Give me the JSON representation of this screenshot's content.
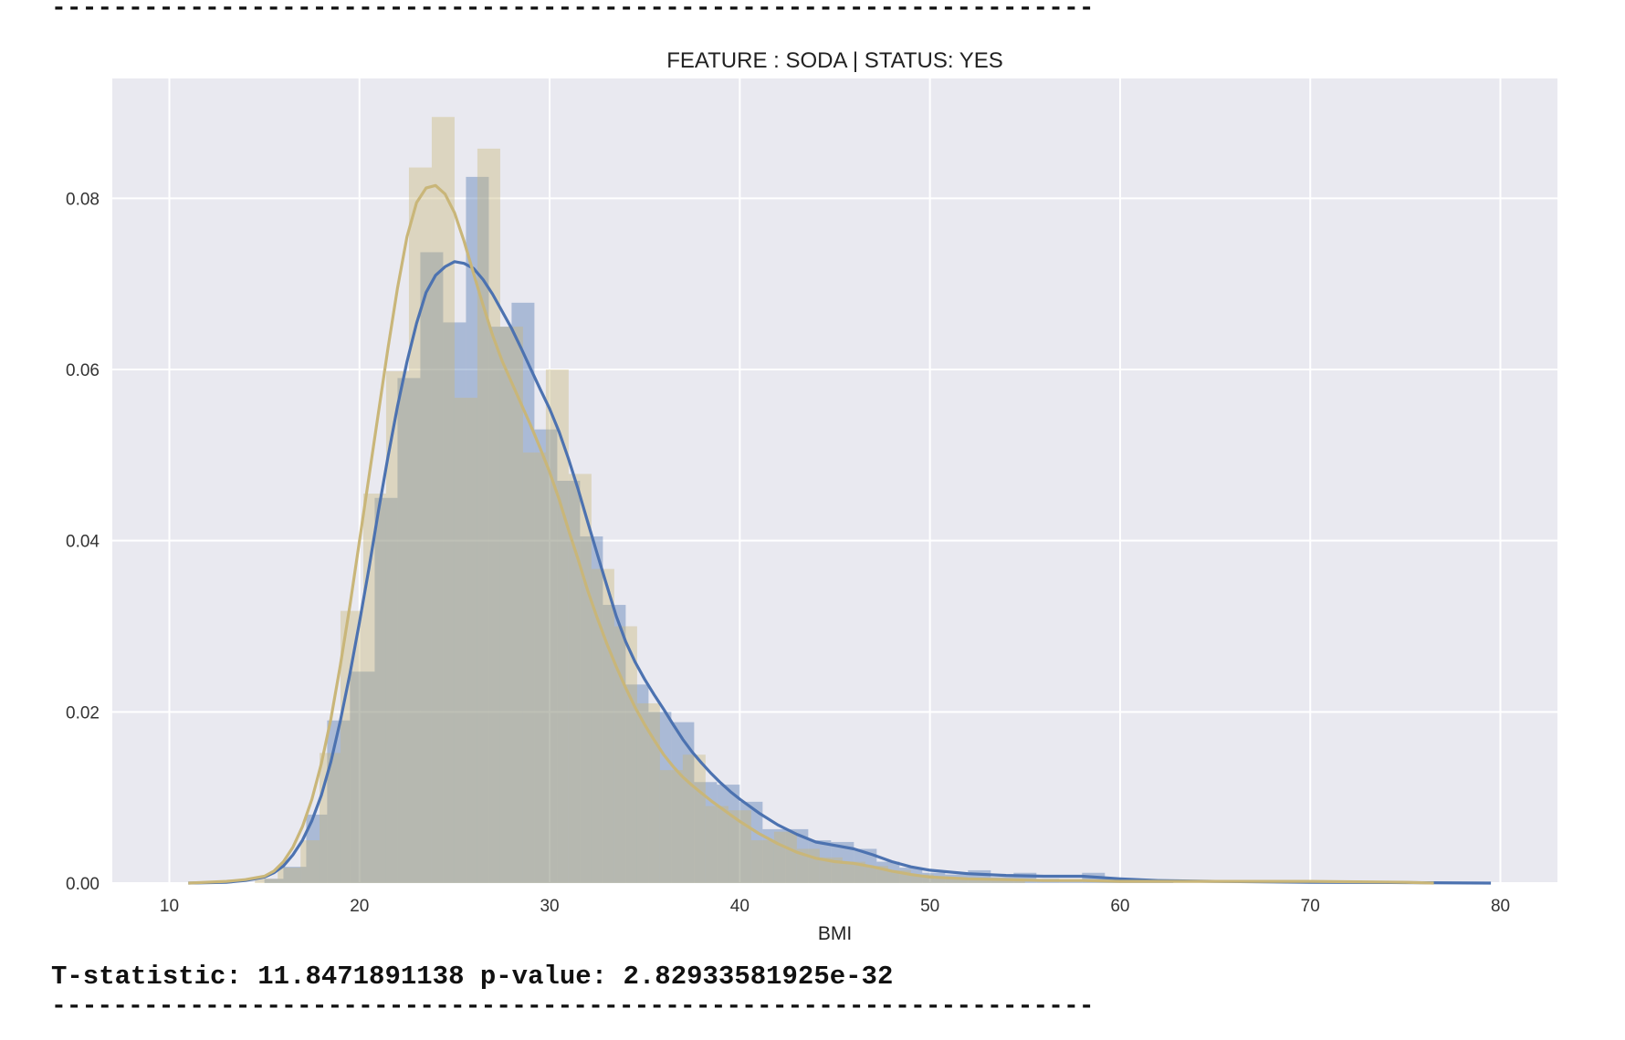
{
  "console": {
    "separator": "--------------------------------------------------------------------",
    "stat_line": "T-statistic: 11.8471891138 p-value: 2.82933581925e-32"
  },
  "chart_data": {
    "type": "histogram",
    "title": "FEATURE : SODA | STATUS: YES",
    "xlabel": "BMI",
    "ylabel": "",
    "xlim": [
      7,
      83
    ],
    "ylim": [
      0,
      0.094
    ],
    "xticks": [
      10,
      20,
      30,
      40,
      50,
      60,
      70,
      80
    ],
    "yticks": [
      0.0,
      0.02,
      0.04,
      0.06,
      0.08
    ],
    "ytick_labels": [
      "0.00",
      "0.02",
      "0.04",
      "0.06",
      "0.08"
    ],
    "grid": true,
    "background": "#e9e9f0",
    "series": [
      {
        "color": "#4c72b0",
        "hist_alpha": 0.4,
        "bins": [
          {
            "x0": 15.0,
            "x1": 16.0,
            "y": 0.0005
          },
          {
            "x0": 16.0,
            "x1": 17.2,
            "y": 0.0019
          },
          {
            "x0": 17.2,
            "x1": 18.3,
            "y": 0.008
          },
          {
            "x0": 18.3,
            "x1": 19.5,
            "y": 0.019
          },
          {
            "x0": 19.5,
            "x1": 20.8,
            "y": 0.0247
          },
          {
            "x0": 20.8,
            "x1": 22.0,
            "y": 0.045
          },
          {
            "x0": 22.0,
            "x1": 23.2,
            "y": 0.059
          },
          {
            "x0": 23.2,
            "x1": 24.4,
            "y": 0.0737
          },
          {
            "x0": 24.4,
            "x1": 25.6,
            "y": 0.0655
          },
          {
            "x0": 25.6,
            "x1": 26.8,
            "y": 0.0825
          },
          {
            "x0": 26.8,
            "x1": 28.0,
            "y": 0.065
          },
          {
            "x0": 28.0,
            "x1": 29.2,
            "y": 0.0678
          },
          {
            "x0": 29.2,
            "x1": 30.4,
            "y": 0.053
          },
          {
            "x0": 30.4,
            "x1": 31.6,
            "y": 0.047
          },
          {
            "x0": 31.6,
            "x1": 32.8,
            "y": 0.0405
          },
          {
            "x0": 32.8,
            "x1": 34.0,
            "y": 0.0325
          },
          {
            "x0": 34.0,
            "x1": 35.2,
            "y": 0.0232
          },
          {
            "x0": 35.2,
            "x1": 36.4,
            "y": 0.02
          },
          {
            "x0": 36.4,
            "x1": 37.6,
            "y": 0.0188
          },
          {
            "x0": 37.6,
            "x1": 38.8,
            "y": 0.0118
          },
          {
            "x0": 38.8,
            "x1": 40.0,
            "y": 0.0115
          },
          {
            "x0": 40.0,
            "x1": 41.2,
            "y": 0.0095
          },
          {
            "x0": 41.2,
            "x1": 42.4,
            "y": 0.0063
          },
          {
            "x0": 42.4,
            "x1": 43.6,
            "y": 0.0063
          },
          {
            "x0": 43.6,
            "x1": 44.8,
            "y": 0.005
          },
          {
            "x0": 44.8,
            "x1": 46.0,
            "y": 0.0048
          },
          {
            "x0": 46.0,
            "x1": 47.2,
            "y": 0.004
          },
          {
            "x0": 47.2,
            "x1": 48.4,
            "y": 0.0025
          },
          {
            "x0": 48.4,
            "x1": 49.6,
            "y": 0.0018
          },
          {
            "x0": 49.6,
            "x1": 50.8,
            "y": 0.0012
          },
          {
            "x0": 50.8,
            "x1": 52.0,
            "y": 0.001
          },
          {
            "x0": 52.0,
            "x1": 53.2,
            "y": 0.0015
          },
          {
            "x0": 53.2,
            "x1": 54.4,
            "y": 0.0007
          },
          {
            "x0": 54.4,
            "x1": 55.6,
            "y": 0.0012
          },
          {
            "x0": 55.6,
            "x1": 56.8,
            "y": 0.0005
          },
          {
            "x0": 56.8,
            "x1": 58.0,
            "y": 0.0004
          },
          {
            "x0": 58.0,
            "x1": 59.2,
            "y": 0.0012
          },
          {
            "x0": 59.2,
            "x1": 60.4,
            "y": 0.0005
          },
          {
            "x0": 60.4,
            "x1": 61.6,
            "y": 0.0004
          },
          {
            "x0": 61.6,
            "x1": 62.8,
            "y": 0.0002
          }
        ],
        "kde": [
          [
            11,
            0.0
          ],
          [
            13,
            0.0001
          ],
          [
            14,
            0.0003
          ],
          [
            15,
            0.0007
          ],
          [
            15.5,
            0.0012
          ],
          [
            16,
            0.002
          ],
          [
            16.5,
            0.0033
          ],
          [
            17,
            0.005
          ],
          [
            17.5,
            0.0073
          ],
          [
            18,
            0.0103
          ],
          [
            18.5,
            0.0142
          ],
          [
            19,
            0.019
          ],
          [
            19.5,
            0.0245
          ],
          [
            20,
            0.0305
          ],
          [
            20.5,
            0.0368
          ],
          [
            21,
            0.0435
          ],
          [
            21.5,
            0.0498
          ],
          [
            22,
            0.0557
          ],
          [
            22.5,
            0.0609
          ],
          [
            23,
            0.0654
          ],
          [
            23.5,
            0.069
          ],
          [
            24,
            0.071
          ],
          [
            24.5,
            0.072
          ],
          [
            25,
            0.0726
          ],
          [
            25.5,
            0.0724
          ],
          [
            26,
            0.0718
          ],
          [
            26.5,
            0.0705
          ],
          [
            27,
            0.0688
          ],
          [
            27.5,
            0.0668
          ],
          [
            28,
            0.0648
          ],
          [
            28.5,
            0.0625
          ],
          [
            29,
            0.0601
          ],
          [
            29.5,
            0.0577
          ],
          [
            30,
            0.0554
          ],
          [
            30.5,
            0.0527
          ],
          [
            31,
            0.0495
          ],
          [
            31.5,
            0.046
          ],
          [
            32,
            0.0422
          ],
          [
            32.5,
            0.0385
          ],
          [
            33,
            0.0348
          ],
          [
            33.5,
            0.0312
          ],
          [
            34,
            0.0282
          ],
          [
            34.5,
            0.0258
          ],
          [
            35,
            0.0238
          ],
          [
            35.5,
            0.022
          ],
          [
            36,
            0.0203
          ],
          [
            36.5,
            0.0185
          ],
          [
            37,
            0.0168
          ],
          [
            37.5,
            0.0153
          ],
          [
            38,
            0.014
          ],
          [
            38.5,
            0.0128
          ],
          [
            39,
            0.0117
          ],
          [
            39.5,
            0.0107
          ],
          [
            40,
            0.0098
          ],
          [
            41,
            0.0082
          ],
          [
            42,
            0.0068
          ],
          [
            43,
            0.0057
          ],
          [
            44,
            0.0048
          ],
          [
            45,
            0.0044
          ],
          [
            46,
            0.004
          ],
          [
            47,
            0.0033
          ],
          [
            48,
            0.0025
          ],
          [
            49,
            0.0019
          ],
          [
            50,
            0.0015
          ],
          [
            52,
            0.0011
          ],
          [
            54,
            0.0009
          ],
          [
            56,
            0.0008
          ],
          [
            58,
            0.0008
          ],
          [
            60,
            0.0005
          ],
          [
            62,
            0.0003
          ],
          [
            65,
            0.0002
          ],
          [
            70,
            0.0001
          ],
          [
            75,
            5e-05
          ],
          [
            79.5,
            0.0
          ]
        ]
      },
      {
        "color": "#c9b679",
        "hist_alpha": 0.4,
        "bins": [
          {
            "x0": 14.5,
            "x1": 15.7,
            "y": 0.0005
          },
          {
            "x0": 15.7,
            "x1": 16.9,
            "y": 0.0018
          },
          {
            "x0": 16.9,
            "x1": 17.9,
            "y": 0.005
          },
          {
            "x0": 17.9,
            "x1": 19.0,
            "y": 0.0152
          },
          {
            "x0": 19.0,
            "x1": 20.2,
            "y": 0.0318
          },
          {
            "x0": 20.2,
            "x1": 21.4,
            "y": 0.0455
          },
          {
            "x0": 21.4,
            "x1": 22.6,
            "y": 0.0598
          },
          {
            "x0": 22.6,
            "x1": 23.8,
            "y": 0.0836
          },
          {
            "x0": 23.8,
            "x1": 25.0,
            "y": 0.0895
          },
          {
            "x0": 25.0,
            "x1": 26.2,
            "y": 0.0567
          },
          {
            "x0": 26.2,
            "x1": 27.4,
            "y": 0.0858
          },
          {
            "x0": 27.4,
            "x1": 28.6,
            "y": 0.065
          },
          {
            "x0": 28.6,
            "x1": 29.8,
            "y": 0.0503
          },
          {
            "x0": 29.8,
            "x1": 31.0,
            "y": 0.06
          },
          {
            "x0": 31.0,
            "x1": 32.2,
            "y": 0.0478
          },
          {
            "x0": 32.2,
            "x1": 33.4,
            "y": 0.0367
          },
          {
            "x0": 33.4,
            "x1": 34.6,
            "y": 0.03
          },
          {
            "x0": 34.6,
            "x1": 35.8,
            "y": 0.021
          },
          {
            "x0": 35.8,
            "x1": 37.0,
            "y": 0.0132
          },
          {
            "x0": 37.0,
            "x1": 38.2,
            "y": 0.015
          },
          {
            "x0": 38.2,
            "x1": 39.4,
            "y": 0.009
          },
          {
            "x0": 39.4,
            "x1": 40.6,
            "y": 0.0085
          },
          {
            "x0": 40.6,
            "x1": 41.8,
            "y": 0.005
          },
          {
            "x0": 41.8,
            "x1": 43.0,
            "y": 0.006
          },
          {
            "x0": 43.0,
            "x1": 44.2,
            "y": 0.004
          },
          {
            "x0": 44.2,
            "x1": 45.4,
            "y": 0.003
          },
          {
            "x0": 45.4,
            "x1": 46.6,
            "y": 0.0025
          },
          {
            "x0": 46.6,
            "x1": 47.8,
            "y": 0.002
          },
          {
            "x0": 47.8,
            "x1": 49.0,
            "y": 0.0015
          },
          {
            "x0": 49.0,
            "x1": 50.2,
            "y": 0.001
          },
          {
            "x0": 50.2,
            "x1": 55.0,
            "y": 0.0005
          }
        ],
        "kde": [
          [
            11,
            0.0
          ],
          [
            13,
            0.0002
          ],
          [
            14,
            0.0004
          ],
          [
            15,
            0.0008
          ],
          [
            15.5,
            0.0014
          ],
          [
            16,
            0.0025
          ],
          [
            16.5,
            0.0042
          ],
          [
            17,
            0.0066
          ],
          [
            17.5,
            0.0098
          ],
          [
            18,
            0.014
          ],
          [
            18.5,
            0.0192
          ],
          [
            19,
            0.0255
          ],
          [
            19.5,
            0.0325
          ],
          [
            20,
            0.04
          ],
          [
            20.5,
            0.0475
          ],
          [
            21,
            0.055
          ],
          [
            21.5,
            0.0625
          ],
          [
            22,
            0.0695
          ],
          [
            22.5,
            0.0755
          ],
          [
            23,
            0.0795
          ],
          [
            23.5,
            0.0812
          ],
          [
            24,
            0.0815
          ],
          [
            24.5,
            0.0805
          ],
          [
            25,
            0.0783
          ],
          [
            25.5,
            0.075
          ],
          [
            26,
            0.0712
          ],
          [
            26.5,
            0.0675
          ],
          [
            27,
            0.064
          ],
          [
            27.5,
            0.061
          ],
          [
            28,
            0.0585
          ],
          [
            28.5,
            0.056
          ],
          [
            29,
            0.0535
          ],
          [
            29.5,
            0.0508
          ],
          [
            30,
            0.048
          ],
          [
            30.5,
            0.0448
          ],
          [
            31,
            0.0412
          ],
          [
            31.5,
            0.0378
          ],
          [
            32,
            0.0342
          ],
          [
            32.5,
            0.031
          ],
          [
            33,
            0.028
          ],
          [
            33.5,
            0.0253
          ],
          [
            34,
            0.0228
          ],
          [
            34.5,
            0.0205
          ],
          [
            35,
            0.0185
          ],
          [
            35.5,
            0.0167
          ],
          [
            36,
            0.015
          ],
          [
            36.5,
            0.0136
          ],
          [
            37,
            0.0124
          ],
          [
            37.5,
            0.0114
          ],
          [
            38,
            0.0105
          ],
          [
            38.5,
            0.0096
          ],
          [
            39,
            0.0088
          ],
          [
            39.5,
            0.008
          ],
          [
            40,
            0.0072
          ],
          [
            41,
            0.0058
          ],
          [
            42,
            0.0046
          ],
          [
            43,
            0.0036
          ],
          [
            44,
            0.0029
          ],
          [
            45,
            0.0025
          ],
          [
            46,
            0.0023
          ],
          [
            47,
            0.0019
          ],
          [
            48,
            0.0014
          ],
          [
            49,
            0.001
          ],
          [
            50,
            0.0007
          ],
          [
            52,
            0.0005
          ],
          [
            54,
            0.0004
          ],
          [
            56,
            0.0003
          ],
          [
            58,
            0.0003
          ],
          [
            60,
            0.0002
          ],
          [
            65,
            0.0002
          ],
          [
            70,
            0.0002
          ],
          [
            75,
            0.0001
          ],
          [
            76.5,
            0.0
          ]
        ]
      }
    ]
  }
}
